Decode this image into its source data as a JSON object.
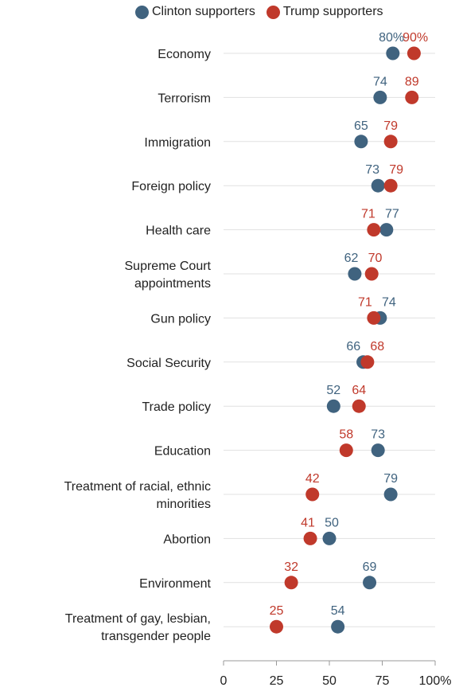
{
  "colors": {
    "clinton": "#40637f",
    "trump": "#c0392b",
    "grid": "#e1e1e1",
    "axis": "#999999",
    "text": "#222222"
  },
  "chart_data": {
    "type": "scatter",
    "legend": "top",
    "grid": true,
    "xlim": [
      0,
      100
    ],
    "xticks": [
      0,
      25,
      50,
      75,
      100
    ],
    "xtick_labels": [
      "0",
      "25",
      "50",
      "75",
      "100%"
    ],
    "categories": [
      "Economy",
      "Terrorism",
      "Immigration",
      "Foreign policy",
      "Health care",
      "Supreme Court appointments",
      "Gun policy",
      "Social Security",
      "Trade policy",
      "Education",
      "Treatment of racial, ethnic minorities",
      "Abortion",
      "Environment",
      "Treatment of gay, lesbian, transgender people"
    ],
    "category_lines": [
      [
        "Economy"
      ],
      [
        "Terrorism"
      ],
      [
        "Immigration"
      ],
      [
        "Foreign policy"
      ],
      [
        "Health care"
      ],
      [
        "Supreme Court",
        "appointments"
      ],
      [
        "Gun policy"
      ],
      [
        "Social Security"
      ],
      [
        "Trade policy"
      ],
      [
        "Education"
      ],
      [
        "Treatment of racial, ethnic",
        "minorities"
      ],
      [
        "Abortion"
      ],
      [
        "Environment"
      ],
      [
        "Treatment of gay, lesbian,",
        "transgender people"
      ]
    ],
    "series": [
      {
        "name": "Clinton supporters",
        "color": "#40637f",
        "values": [
          80,
          74,
          65,
          73,
          77,
          62,
          74,
          66,
          52,
          73,
          79,
          50,
          69,
          54
        ],
        "labels": [
          "80%",
          "74",
          "65",
          "73",
          "77",
          "62",
          "74",
          "66",
          "52",
          "73",
          "79",
          "50",
          "69",
          "54"
        ]
      },
      {
        "name": "Trump supporters",
        "color": "#c0392b",
        "values": [
          90,
          89,
          79,
          79,
          71,
          70,
          71,
          68,
          64,
          58,
          42,
          41,
          32,
          25
        ],
        "labels": [
          "90%",
          "89",
          "79",
          "79",
          "71",
          "70",
          "71",
          "68",
          "64",
          "58",
          "42",
          "41",
          "32",
          "25"
        ]
      }
    ]
  }
}
